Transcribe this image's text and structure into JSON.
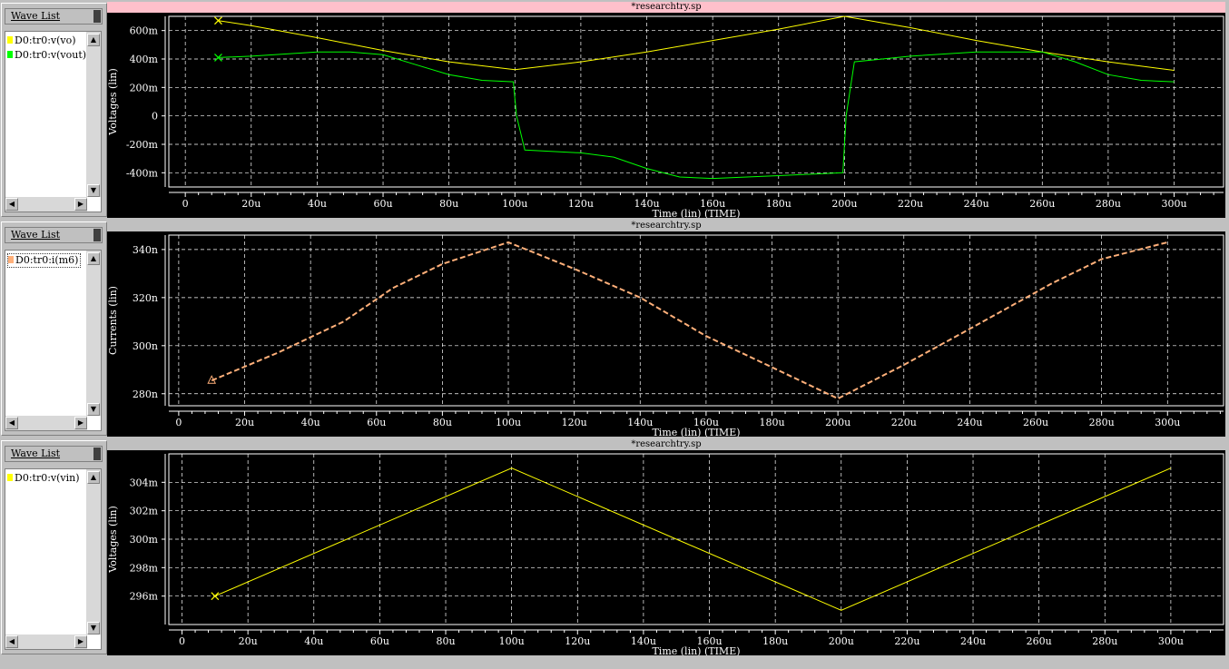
{
  "panels": [
    {
      "title": "*researchtry.sp",
      "title_bg": "#ffc0cb",
      "wave_list_label": "Wave List",
      "signals": [
        {
          "label": "D0:tr0:v(vo)",
          "color": "#ffff00"
        },
        {
          "label": "D0:tr0:v(vout)",
          "color": "#00ff00"
        }
      ]
    },
    {
      "title": "*researchtry.sp",
      "title_bg": "#c0c0c0",
      "wave_list_label": "Wave List",
      "signals": [
        {
          "label": "D0:tr0:i(m6)",
          "color": "#ffb07a"
        }
      ]
    },
    {
      "title": "*researchtry.sp",
      "title_bg": "#c0c0c0",
      "wave_list_label": "Wave List",
      "signals": [
        {
          "label": "D0:tr0:v(vin)",
          "color": "#ffff00"
        }
      ]
    }
  ],
  "chart_data": [
    {
      "type": "line",
      "xlabel": "Time (lin) (TIME)",
      "ylabel": "Voltages (lin)",
      "xlim": [
        -5,
        315
      ],
      "ylim": [
        -500,
        700
      ],
      "x_unit": "u",
      "y_unit": "m",
      "x_ticks": [
        "0",
        "20u",
        "40u",
        "60u",
        "80u",
        "100u",
        "120u",
        "140u",
        "160u",
        "180u",
        "200u",
        "220u",
        "240u",
        "260u",
        "280u",
        "300u"
      ],
      "y_ticks": [
        {
          "value": 600,
          "label": "600m"
        },
        {
          "value": 400,
          "label": "400m"
        },
        {
          "value": 200,
          "label": "200m"
        },
        {
          "value": 0,
          "label": "0"
        },
        {
          "value": -200,
          "label": "-200m"
        },
        {
          "value": -400,
          "label": "-400m"
        }
      ],
      "grid": true,
      "series": [
        {
          "name": "D0:tr0:v(vo)",
          "color": "#ffff00",
          "marker": "x",
          "x": [
            10,
            20,
            40,
            60,
            80,
            100,
            120,
            140,
            160,
            180,
            200,
            220,
            240,
            260,
            280,
            300
          ],
          "y": [
            670,
            635,
            550,
            460,
            380,
            325,
            380,
            450,
            530,
            610,
            700,
            620,
            530,
            450,
            380,
            320
          ]
        },
        {
          "name": "D0:tr0:v(vout)",
          "color": "#00ff00",
          "marker": "x",
          "x": [
            10,
            20,
            40,
            50,
            60,
            70,
            80,
            90,
            99.5,
            100.5,
            103,
            120,
            130,
            140,
            150,
            160,
            180,
            199.5,
            200.5,
            203,
            220,
            240,
            260,
            270,
            280,
            290,
            300
          ],
          "y": [
            410,
            420,
            450,
            450,
            430,
            360,
            290,
            250,
            240,
            0,
            -240,
            -260,
            -290,
            -370,
            -430,
            -440,
            -420,
            -400,
            0,
            380,
            420,
            450,
            450,
            380,
            290,
            250,
            240
          ]
        }
      ]
    },
    {
      "type": "line",
      "xlabel": "Time (lin) (TIME)",
      "ylabel": "Currents (lin)",
      "xlim": [
        -3,
        317
      ],
      "ylim": [
        275,
        346
      ],
      "x_unit": "u",
      "y_unit": "n",
      "x_ticks": [
        "0",
        "20u",
        "40u",
        "60u",
        "80u",
        "100u",
        "120u",
        "140u",
        "160u",
        "180u",
        "200u",
        "220u",
        "240u",
        "260u",
        "280u",
        "300u"
      ],
      "y_ticks": [
        {
          "value": 340,
          "label": "340n"
        },
        {
          "value": 320,
          "label": "320n"
        },
        {
          "value": 300,
          "label": "300n"
        },
        {
          "value": 280,
          "label": "280n"
        }
      ],
      "grid": true,
      "series": [
        {
          "name": "D0:tr0:i(m6)",
          "color": "#ffb07a",
          "marker": "triangle",
          "dashed": true,
          "x": [
            10,
            30,
            50,
            65,
            80,
            100,
            120,
            140,
            160,
            180,
            200,
            220,
            240,
            265,
            280,
            300
          ],
          "y": [
            285.5,
            297,
            310,
            324,
            334,
            343,
            332,
            320,
            304,
            291,
            278,
            292,
            307,
            326,
            336,
            343
          ]
        }
      ]
    },
    {
      "type": "line",
      "xlabel": "Time (lin) (TIME)",
      "ylabel": "Voltages (lin)",
      "xlim": [
        -4,
        316
      ],
      "ylim": [
        294,
        306
      ],
      "x_unit": "u",
      "y_unit": "m",
      "x_ticks": [
        "0",
        "20u",
        "40u",
        "60u",
        "80u",
        "100u",
        "120u",
        "140u",
        "160u",
        "180u",
        "200u",
        "220u",
        "240u",
        "260u",
        "280u",
        "300u"
      ],
      "y_ticks": [
        {
          "value": 304,
          "label": "304m"
        },
        {
          "value": 302,
          "label": "302m"
        },
        {
          "value": 300,
          "label": "300m"
        },
        {
          "value": 298,
          "label": "298m"
        },
        {
          "value": 296,
          "label": "296m"
        }
      ],
      "grid": true,
      "series": [
        {
          "name": "D0:tr0:v(vin)",
          "color": "#ffff00",
          "marker": "x",
          "x": [
            10,
            100,
            200,
            300
          ],
          "y": [
            296,
            305,
            295,
            305
          ]
        }
      ]
    }
  ]
}
